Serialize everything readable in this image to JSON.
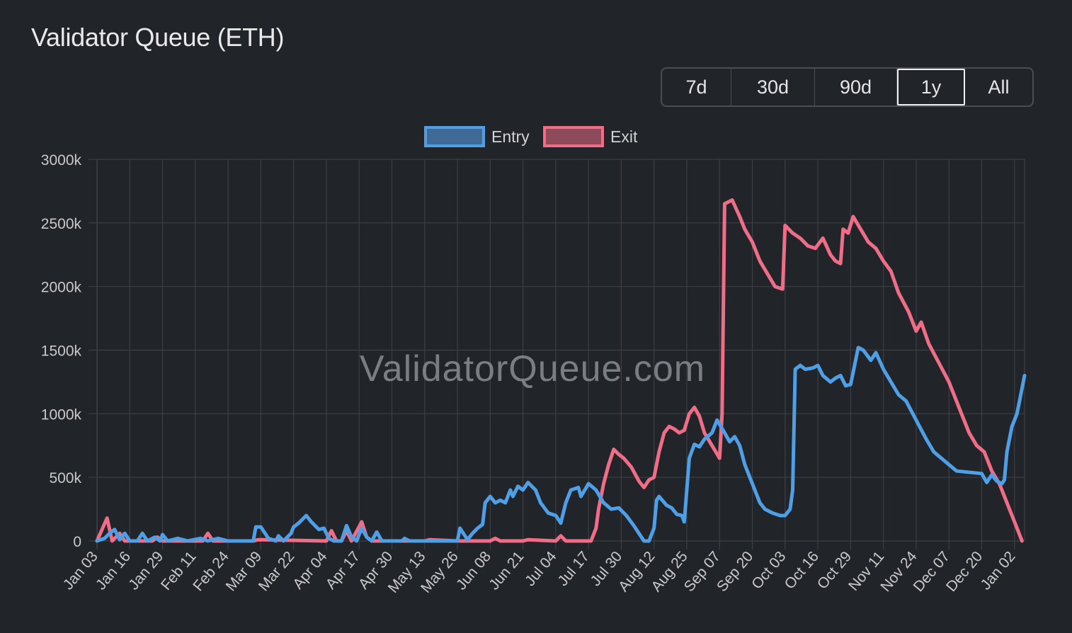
{
  "header": {
    "title": "Validator Queue (ETH)"
  },
  "range_selector": {
    "options": [
      "7d",
      "30d",
      "90d",
      "1y",
      "All"
    ],
    "active": "1y"
  },
  "watermark": "ValidatorQueue.com",
  "colors": {
    "background": "#212429",
    "grid": "#3c3f45",
    "axis_text": "#c9c9c9",
    "entry": "#4f9fe6",
    "entry_fill": "#3f6a96",
    "exit": "#ef6d86",
    "exit_fill": "#8c4a5b"
  },
  "chart_data": {
    "type": "line",
    "title": "",
    "xlabel": "",
    "ylabel": "",
    "x_start": "Jan 03",
    "x_end": "Jan 06",
    "ylim": [
      0,
      3000000
    ],
    "y_ticks": [
      0,
      500000,
      1000000,
      1500000,
      2000000,
      2500000,
      3000000
    ],
    "y_tick_labels": [
      "0",
      "500k",
      "1000k",
      "1500k",
      "2000k",
      "2500k",
      "3000k"
    ],
    "x_tick_labels": [
      "Jan 03",
      "Jan 16",
      "Jan 29",
      "Feb 11",
      "Feb 24",
      "Mar 09",
      "Mar 22",
      "Apr 04",
      "Apr 17",
      "Apr 30",
      "May 13",
      "May 26",
      "Jun 08",
      "Jun 21",
      "Jul 04",
      "Jul 17",
      "Jul 30",
      "Aug 12",
      "Aug 25",
      "Sep 07",
      "Sep 20",
      "Oct 03",
      "Oct 16",
      "Oct 29",
      "Nov 11",
      "Nov 24",
      "Dec 07",
      "Dec 20",
      "Jan 02"
    ],
    "grid": true,
    "legend_position": "top-center",
    "series": [
      {
        "name": "Entry",
        "points": [
          [
            "Jan 03",
            0
          ],
          [
            "Jan 06",
            20000
          ],
          [
            "Jan 08",
            60000
          ],
          [
            "Jan 10",
            90000
          ],
          [
            "Jan 12",
            10000
          ],
          [
            "Jan 14",
            60000
          ],
          [
            "Jan 16",
            0
          ],
          [
            "Jan 19",
            0
          ],
          [
            "Jan 21",
            60000
          ],
          [
            "Jan 23",
            0
          ],
          [
            "Jan 26",
            30000
          ],
          [
            "Jan 28",
            0
          ],
          [
            "Jan 29",
            50000
          ],
          [
            "Jan 31",
            0
          ],
          [
            "Feb 04",
            20000
          ],
          [
            "Feb 08",
            0
          ],
          [
            "Feb 13",
            20000
          ],
          [
            "Feb 16",
            0
          ],
          [
            "Feb 20",
            20000
          ],
          [
            "Feb 24",
            0
          ],
          [
            "Mar 06",
            0
          ],
          [
            "Mar 07",
            110000
          ],
          [
            "Mar 09",
            110000
          ],
          [
            "Mar 12",
            20000
          ],
          [
            "Mar 15",
            0
          ],
          [
            "Mar 16",
            40000
          ],
          [
            "Mar 18",
            0
          ],
          [
            "Mar 21",
            60000
          ],
          [
            "Mar 22",
            110000
          ],
          [
            "Mar 24",
            140000
          ],
          [
            "Mar 27",
            200000
          ],
          [
            "Mar 29",
            150000
          ],
          [
            "Apr 01",
            90000
          ],
          [
            "Apr 03",
            100000
          ],
          [
            "Apr 05",
            20000
          ],
          [
            "Apr 07",
            0
          ],
          [
            "Apr 10",
            0
          ],
          [
            "Apr 12",
            120000
          ],
          [
            "Apr 14",
            30000
          ],
          [
            "Apr 16",
            0
          ],
          [
            "Apr 18",
            100000
          ],
          [
            "Apr 20",
            30000
          ],
          [
            "Apr 22",
            0
          ],
          [
            "Apr 24",
            70000
          ],
          [
            "Apr 26",
            0
          ],
          [
            "May 04",
            0
          ],
          [
            "May 05",
            20000
          ],
          [
            "May 07",
            0
          ],
          [
            "May 26",
            0
          ],
          [
            "May 27",
            100000
          ],
          [
            "May 30",
            10000
          ],
          [
            "Jun 01",
            60000
          ],
          [
            "Jun 03",
            100000
          ],
          [
            "Jun 05",
            130000
          ],
          [
            "Jun 06",
            300000
          ],
          [
            "Jun 08",
            350000
          ],
          [
            "Jun 10",
            300000
          ],
          [
            "Jun 12",
            320000
          ],
          [
            "Jun 14",
            300000
          ],
          [
            "Jun 16",
            400000
          ],
          [
            "Jun 17",
            350000
          ],
          [
            "Jun 19",
            430000
          ],
          [
            "Jun 21",
            400000
          ],
          [
            "Jun 23",
            460000
          ],
          [
            "Jun 26",
            400000
          ],
          [
            "Jun 28",
            300000
          ],
          [
            "Jul 01",
            220000
          ],
          [
            "Jul 04",
            200000
          ],
          [
            "Jul 06",
            140000
          ],
          [
            "Jul 08",
            300000
          ],
          [
            "Jul 10",
            400000
          ],
          [
            "Jul 13",
            420000
          ],
          [
            "Jul 14",
            350000
          ],
          [
            "Jul 17",
            450000
          ],
          [
            "Jul 20",
            400000
          ],
          [
            "Jul 23",
            300000
          ],
          [
            "Jul 26",
            250000
          ],
          [
            "Jul 29",
            260000
          ],
          [
            "Aug 01",
            200000
          ],
          [
            "Aug 04",
            120000
          ],
          [
            "Aug 07",
            30000
          ],
          [
            "Aug 08",
            0
          ],
          [
            "Aug 10",
            0
          ],
          [
            "Aug 12",
            100000
          ],
          [
            "Aug 13",
            320000
          ],
          [
            "Aug 14",
            350000
          ],
          [
            "Aug 17",
            280000
          ],
          [
            "Aug 19",
            260000
          ],
          [
            "Aug 21",
            210000
          ],
          [
            "Aug 23",
            200000
          ],
          [
            "Aug 24",
            150000
          ],
          [
            "Aug 26",
            650000
          ],
          [
            "Aug 28",
            760000
          ],
          [
            "Aug 30",
            740000
          ],
          [
            "Sep 01",
            800000
          ],
          [
            "Sep 04",
            850000
          ],
          [
            "Sep 06",
            950000
          ],
          [
            "Sep 09",
            850000
          ],
          [
            "Sep 11",
            780000
          ],
          [
            "Sep 13",
            820000
          ],
          [
            "Sep 15",
            750000
          ],
          [
            "Sep 17",
            600000
          ],
          [
            "Sep 21",
            400000
          ],
          [
            "Sep 23",
            300000
          ],
          [
            "Sep 25",
            250000
          ],
          [
            "Sep 28",
            220000
          ],
          [
            "Oct 01",
            200000
          ],
          [
            "Oct 03",
            200000
          ],
          [
            "Oct 05",
            250000
          ],
          [
            "Oct 06",
            400000
          ],
          [
            "Oct 07",
            1350000
          ],
          [
            "Oct 09",
            1380000
          ],
          [
            "Oct 11",
            1350000
          ],
          [
            "Oct 14",
            1360000
          ],
          [
            "Oct 16",
            1380000
          ],
          [
            "Oct 18",
            1300000
          ],
          [
            "Oct 21",
            1250000
          ],
          [
            "Oct 23",
            1280000
          ],
          [
            "Oct 25",
            1300000
          ],
          [
            "Oct 27",
            1220000
          ],
          [
            "Oct 29",
            1230000
          ],
          [
            "Nov 01",
            1520000
          ],
          [
            "Nov 03",
            1500000
          ],
          [
            "Nov 06",
            1420000
          ],
          [
            "Nov 08",
            1480000
          ],
          [
            "Nov 11",
            1350000
          ],
          [
            "Nov 14",
            1250000
          ],
          [
            "Nov 17",
            1150000
          ],
          [
            "Nov 20",
            1100000
          ],
          [
            "Nov 24",
            950000
          ],
          [
            "Nov 28",
            800000
          ],
          [
            "Dec 01",
            700000
          ],
          [
            "Dec 04",
            650000
          ],
          [
            "Dec 07",
            600000
          ],
          [
            "Dec 10",
            550000
          ],
          [
            "Dec 20",
            530000
          ],
          [
            "Dec 22",
            460000
          ],
          [
            "Dec 24",
            520000
          ],
          [
            "Dec 26",
            470000
          ],
          [
            "Dec 28",
            450000
          ],
          [
            "Dec 29",
            480000
          ],
          [
            "Dec 30",
            700000
          ],
          [
            "Dec 31",
            800000
          ],
          [
            "Jan 01",
            900000
          ],
          [
            "Jan 02",
            950000
          ],
          [
            "Jan 03",
            1000000
          ],
          [
            "Jan 04",
            1100000
          ],
          [
            "Jan 06",
            1300000
          ]
        ]
      },
      {
        "name": "Exit",
        "points": [
          [
            "Jan 03",
            0
          ],
          [
            "Jan 07",
            180000
          ],
          [
            "Jan 09",
            0
          ],
          [
            "Jan 12",
            60000
          ],
          [
            "Jan 14",
            0
          ],
          [
            "Jan 25",
            0
          ],
          [
            "Jan 27",
            30000
          ],
          [
            "Jan 29",
            0
          ],
          [
            "Feb 14",
            0
          ],
          [
            "Feb 16",
            60000
          ],
          [
            "Feb 18",
            0
          ],
          [
            "Mar 06",
            0
          ],
          [
            "Mar 08",
            10000
          ],
          [
            "Apr 04",
            0
          ],
          [
            "Apr 06",
            80000
          ],
          [
            "Apr 08",
            0
          ],
          [
            "Apr 10",
            0
          ],
          [
            "Apr 12",
            80000
          ],
          [
            "Apr 14",
            0
          ],
          [
            "Apr 18",
            150000
          ],
          [
            "Apr 20",
            30000
          ],
          [
            "Apr 22",
            0
          ],
          [
            "May 13",
            0
          ],
          [
            "May 15",
            10000
          ],
          [
            "May 26",
            0
          ],
          [
            "Jun 08",
            0
          ],
          [
            "Jun 10",
            20000
          ],
          [
            "Jun 12",
            0
          ],
          [
            "Jun 21",
            0
          ],
          [
            "Jun 23",
            10000
          ],
          [
            "Jul 04",
            0
          ],
          [
            "Jul 06",
            40000
          ],
          [
            "Jul 08",
            0
          ],
          [
            "Jul 18",
            0
          ],
          [
            "Jul 20",
            100000
          ],
          [
            "Jul 21",
            250000
          ],
          [
            "Jul 23",
            450000
          ],
          [
            "Jul 25",
            600000
          ],
          [
            "Jul 27",
            720000
          ],
          [
            "Jul 29",
            680000
          ],
          [
            "Jul 31",
            650000
          ],
          [
            "Aug 03",
            580000
          ],
          [
            "Aug 06",
            470000
          ],
          [
            "Aug 08",
            420000
          ],
          [
            "Aug 10",
            480000
          ],
          [
            "Aug 12",
            500000
          ],
          [
            "Aug 14",
            700000
          ],
          [
            "Aug 16",
            850000
          ],
          [
            "Aug 18",
            900000
          ],
          [
            "Aug 20",
            880000
          ],
          [
            "Aug 22",
            850000
          ],
          [
            "Aug 24",
            870000
          ],
          [
            "Aug 26",
            1000000
          ],
          [
            "Aug 28",
            1050000
          ],
          [
            "Aug 30",
            980000
          ],
          [
            "Sep 01",
            850000
          ],
          [
            "Sep 04",
            750000
          ],
          [
            "Sep 07",
            650000
          ],
          [
            "Sep 08",
            1000000
          ],
          [
            "Sep 09",
            2650000
          ],
          [
            "Sep 12",
            2680000
          ],
          [
            "Sep 15",
            2550000
          ],
          [
            "Sep 17",
            2450000
          ],
          [
            "Sep 20",
            2350000
          ],
          [
            "Sep 23",
            2200000
          ],
          [
            "Sep 26",
            2100000
          ],
          [
            "Sep 29",
            2000000
          ],
          [
            "Oct 02",
            1980000
          ],
          [
            "Oct 03",
            2480000
          ],
          [
            "Oct 06",
            2420000
          ],
          [
            "Oct 09",
            2380000
          ],
          [
            "Oct 12",
            2320000
          ],
          [
            "Oct 15",
            2300000
          ],
          [
            "Oct 18",
            2380000
          ],
          [
            "Oct 21",
            2250000
          ],
          [
            "Oct 23",
            2200000
          ],
          [
            "Oct 25",
            2180000
          ],
          [
            "Oct 26",
            2450000
          ],
          [
            "Oct 28",
            2420000
          ],
          [
            "Oct 30",
            2550000
          ],
          [
            "Nov 02",
            2450000
          ],
          [
            "Nov 05",
            2350000
          ],
          [
            "Nov 08",
            2300000
          ],
          [
            "Nov 11",
            2200000
          ],
          [
            "Nov 14",
            2120000
          ],
          [
            "Nov 17",
            1950000
          ],
          [
            "Nov 21",
            1800000
          ],
          [
            "Nov 24",
            1650000
          ],
          [
            "Nov 26",
            1720000
          ],
          [
            "Nov 29",
            1550000
          ],
          [
            "Dec 03",
            1400000
          ],
          [
            "Dec 07",
            1250000
          ],
          [
            "Dec 11",
            1050000
          ],
          [
            "Dec 15",
            850000
          ],
          [
            "Dec 18",
            750000
          ],
          [
            "Dec 21",
            700000
          ],
          [
            "Dec 24",
            550000
          ],
          [
            "Dec 27",
            450000
          ],
          [
            "Jan 02",
            150000
          ],
          [
            "Jan 05",
            0
          ]
        ]
      }
    ]
  }
}
